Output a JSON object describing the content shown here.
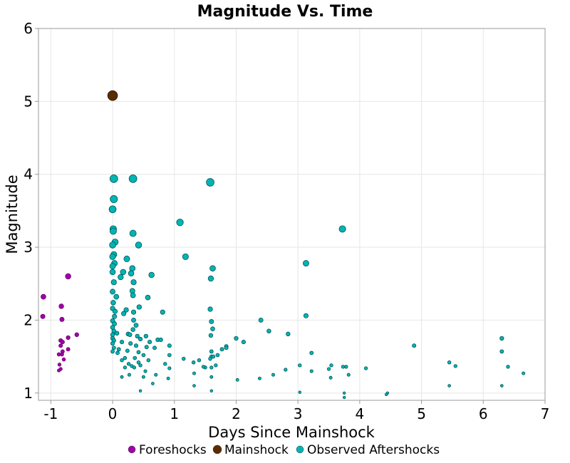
{
  "chart_data": {
    "type": "scatter",
    "title": "Magnitude Vs. Time",
    "xlabel": "Days Since Mainshock",
    "ylabel": "Magnitude",
    "xlim": [
      -1.2,
      7
    ],
    "ylim": [
      0.9,
      6
    ],
    "xticks": [
      -1,
      0,
      1,
      2,
      3,
      4,
      5,
      6,
      7
    ],
    "yticks": [
      1,
      2,
      3,
      4,
      5,
      6
    ],
    "grid": true,
    "legend_position": "bottom",
    "series": [
      {
        "name": "Foreshocks",
        "color": "#a000a8",
        "points": [
          [
            -0.72,
            2.6
          ],
          [
            -1.12,
            2.32
          ],
          [
            -0.83,
            2.19
          ],
          [
            -1.13,
            2.05
          ],
          [
            -0.82,
            2.01
          ],
          [
            -0.58,
            1.8
          ],
          [
            -0.72,
            1.76
          ],
          [
            -0.84,
            1.72
          ],
          [
            -0.81,
            1.7
          ],
          [
            -0.84,
            1.65
          ],
          [
            -0.72,
            1.6
          ],
          [
            -0.81,
            1.57
          ],
          [
            -0.87,
            1.53
          ],
          [
            -0.82,
            1.53
          ],
          [
            -0.79,
            1.46
          ],
          [
            -0.86,
            1.39
          ],
          [
            -0.84,
            1.33
          ],
          [
            -0.87,
            1.31
          ]
        ]
      },
      {
        "name": "Mainshock",
        "color": "#5a2d00",
        "points": [
          [
            0.0,
            5.08
          ]
        ]
      },
      {
        "name": "Observed Aftershocks",
        "color": "#00b4b4",
        "points": [
          [
            0.02,
            3.94
          ],
          [
            0.33,
            3.94
          ],
          [
            1.58,
            3.89
          ],
          [
            0.02,
            3.66
          ],
          [
            0.0,
            3.52
          ],
          [
            1.09,
            3.34
          ],
          [
            0.01,
            3.25
          ],
          [
            0.01,
            3.22
          ],
          [
            0.33,
            3.19
          ],
          [
            3.72,
            3.25
          ],
          [
            0.04,
            3.07
          ],
          [
            0.0,
            3.03
          ],
          [
            0.42,
            3.03
          ],
          [
            0.02,
            2.9
          ],
          [
            0.0,
            2.87
          ],
          [
            1.18,
            2.87
          ],
          [
            0.23,
            2.84
          ],
          [
            3.13,
            2.78
          ],
          [
            0.03,
            2.78
          ],
          [
            0.0,
            2.74
          ],
          [
            0.32,
            2.71
          ],
          [
            1.62,
            2.71
          ],
          [
            0.0,
            2.66
          ],
          [
            0.17,
            2.66
          ],
          [
            0.3,
            2.64
          ],
          [
            0.63,
            2.62
          ],
          [
            1.59,
            2.57
          ],
          [
            0.13,
            2.59
          ],
          [
            0.34,
            2.52
          ],
          [
            0.02,
            2.52
          ],
          [
            0.0,
            2.39
          ],
          [
            0.32,
            2.4
          ],
          [
            0.06,
            2.32
          ],
          [
            0.33,
            2.34
          ],
          [
            0.57,
            2.31
          ],
          [
            0.01,
            2.24
          ],
          [
            0.43,
            2.18
          ],
          [
            0.0,
            2.16
          ],
          [
            0.22,
            2.14
          ],
          [
            0.04,
            2.12
          ],
          [
            0.34,
            2.11
          ],
          [
            0.81,
            2.11
          ],
          [
            0.18,
            2.09
          ],
          [
            1.58,
            2.15
          ],
          [
            0.03,
            2.05
          ],
          [
            3.13,
            2.06
          ],
          [
            0.34,
            2.0
          ],
          [
            0.0,
            1.99
          ],
          [
            2.4,
            2.0
          ],
          [
            1.6,
            1.98
          ],
          [
            0.03,
            1.95
          ],
          [
            0.38,
            1.93
          ],
          [
            0.0,
            1.9
          ],
          [
            1.62,
            1.88
          ],
          [
            0.33,
            1.87
          ],
          [
            2.53,
            1.85
          ],
          [
            0.02,
            1.85
          ],
          [
            0.07,
            1.82
          ],
          [
            0.25,
            1.81
          ],
          [
            0.28,
            1.8
          ],
          [
            0.0,
            1.8
          ],
          [
            2.84,
            1.81
          ],
          [
            0.4,
            1.78
          ],
          [
            1.59,
            1.79
          ],
          [
            0.54,
            1.78
          ],
          [
            0.0,
            1.75
          ],
          [
            2.0,
            1.75
          ],
          [
            0.45,
            1.74
          ],
          [
            0.73,
            1.73
          ],
          [
            0.78,
            1.73
          ],
          [
            6.3,
            1.75
          ],
          [
            0.02,
            1.72
          ],
          [
            2.12,
            1.7
          ],
          [
            0.15,
            1.7
          ],
          [
            0.6,
            1.7
          ],
          [
            0.29,
            1.68
          ],
          [
            0.0,
            1.68
          ],
          [
            0.92,
            1.65
          ],
          [
            4.88,
            1.65
          ],
          [
            0.38,
            1.65
          ],
          [
            0.55,
            1.63
          ],
          [
            1.84,
            1.64
          ],
          [
            1.84,
            1.62
          ],
          [
            0.02,
            1.62
          ],
          [
            0.68,
            1.62
          ],
          [
            1.77,
            1.6
          ],
          [
            0.1,
            1.6
          ],
          [
            0.24,
            1.58
          ],
          [
            0.0,
            1.57
          ],
          [
            1.6,
            1.57
          ],
          [
            6.3,
            1.57
          ],
          [
            0.42,
            1.56
          ],
          [
            3.22,
            1.55
          ],
          [
            0.92,
            1.52
          ],
          [
            0.08,
            1.55
          ],
          [
            0.5,
            1.52
          ],
          [
            1.7,
            1.52
          ],
          [
            1.6,
            1.5
          ],
          [
            0.2,
            1.48
          ],
          [
            1.15,
            1.47
          ],
          [
            1.63,
            1.5
          ],
          [
            0.36,
            1.48
          ],
          [
            0.15,
            1.45
          ],
          [
            1.4,
            1.45
          ],
          [
            1.58,
            1.47
          ],
          [
            0.58,
            1.45
          ],
          [
            0.42,
            1.42
          ],
          [
            5.45,
            1.42
          ],
          [
            3.54,
            1.38
          ],
          [
            1.31,
            1.42
          ],
          [
            0.26,
            1.4
          ],
          [
            0.85,
            1.4
          ],
          [
            1.67,
            1.38
          ],
          [
            3.03,
            1.38
          ],
          [
            5.55,
            1.37
          ],
          [
            0.31,
            1.37
          ],
          [
            0.45,
            1.38
          ],
          [
            3.73,
            1.36
          ],
          [
            3.78,
            1.36
          ],
          [
            0.92,
            1.34
          ],
          [
            1.5,
            1.35
          ],
          [
            1.47,
            1.36
          ],
          [
            3.5,
            1.33
          ],
          [
            4.1,
            1.34
          ],
          [
            6.4,
            1.36
          ],
          [
            0.2,
            1.35
          ],
          [
            0.35,
            1.35
          ],
          [
            1.6,
            1.35
          ],
          [
            3.22,
            1.3
          ],
          [
            2.8,
            1.32
          ],
          [
            0.53,
            1.3
          ],
          [
            1.32,
            1.27
          ],
          [
            6.65,
            1.27
          ],
          [
            0.27,
            1.25
          ],
          [
            0.7,
            1.25
          ],
          [
            2.6,
            1.25
          ],
          [
            3.82,
            1.25
          ],
          [
            0.15,
            1.22
          ],
          [
            1.6,
            1.22
          ],
          [
            0.5,
            1.22
          ],
          [
            3.53,
            1.21
          ],
          [
            2.38,
            1.2
          ],
          [
            0.9,
            1.2
          ],
          [
            2.02,
            1.18
          ],
          [
            1.32,
            1.1
          ],
          [
            0.65,
            1.13
          ],
          [
            6.3,
            1.1
          ],
          [
            5.45,
            1.1
          ],
          [
            0.45,
            1.03
          ],
          [
            1.6,
            1.03
          ],
          [
            3.03,
            1.01
          ],
          [
            3.75,
            1.0
          ],
          [
            4.45,
            1.0
          ],
          [
            4.43,
            0.98
          ],
          [
            3.75,
            0.94
          ]
        ]
      }
    ]
  }
}
